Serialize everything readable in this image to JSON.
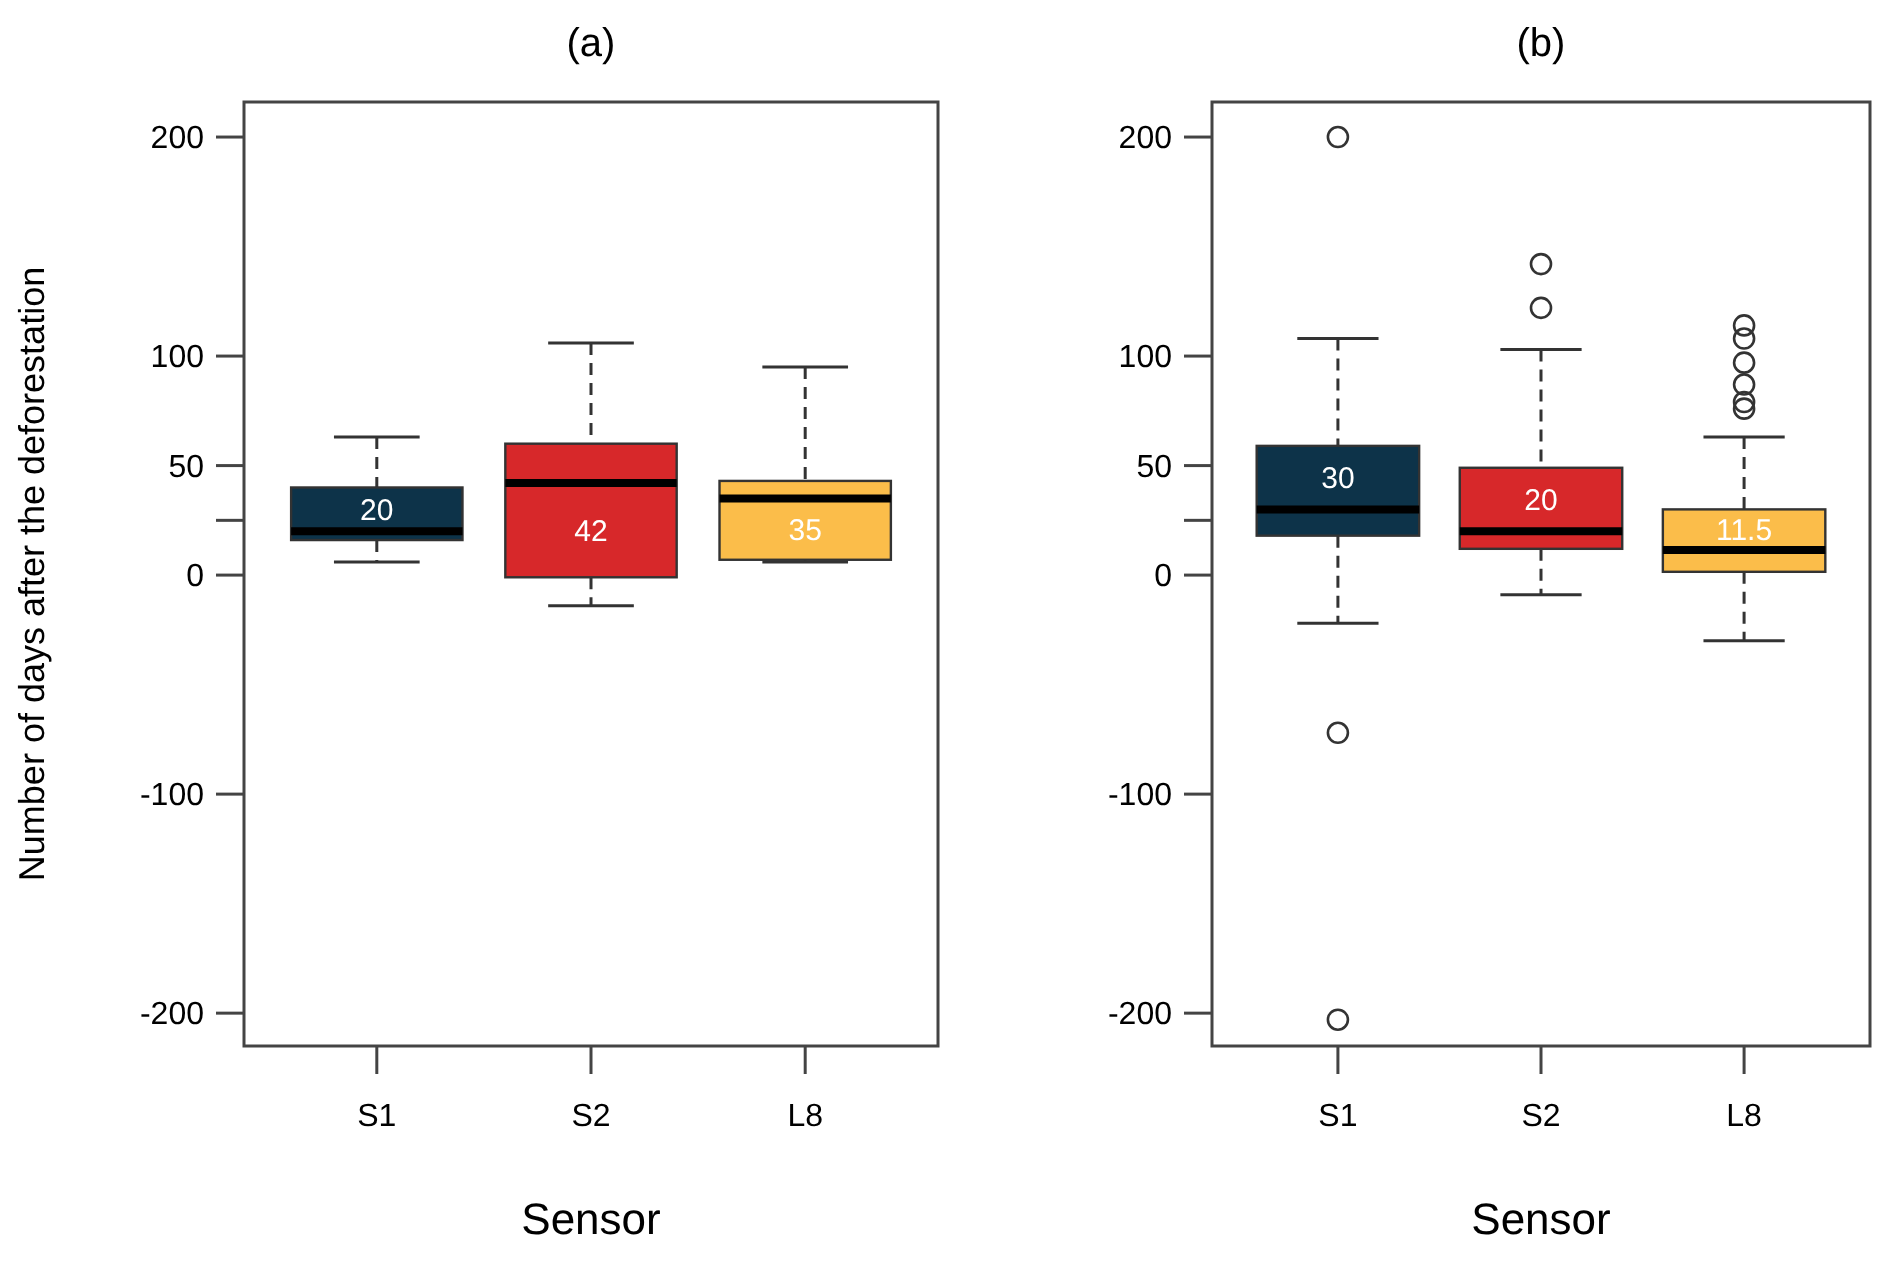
{
  "chart_data": [
    {
      "type": "box",
      "title": "(a)",
      "xlabel": "Sensor",
      "ylabel": "Number of days after the deforestation",
      "categories": [
        "S1",
        "S2",
        "L8"
      ],
      "colors": [
        "#0d3349",
        "#d7282a",
        "#fbbd4a"
      ],
      "ylim": [
        -215,
        216
      ],
      "yticks": [
        200,
        100,
        50,
        {
          "value": 25,
          "label": null
        },
        0,
        -100,
        -200
      ],
      "annotations": [
        {
          "text": "20",
          "x": "S1",
          "y": 20
        },
        {
          "text": "42",
          "x": "S2",
          "y": 42
        },
        {
          "text": "35",
          "x": "L8",
          "y": 35
        }
      ],
      "boxes": [
        {
          "low": 6,
          "q1": 16,
          "median": 20,
          "q3": 40,
          "high": 63
        },
        {
          "low": -14,
          "q1": -1,
          "median": 42,
          "q3": 60,
          "high": 106
        },
        {
          "low": 6,
          "q1": 7,
          "median": 35,
          "q3": 43,
          "high": 95
        }
      ]
    },
    {
      "type": "box",
      "title": "(b)",
      "xlabel": "Sensor",
      "categories": [
        "S1",
        "S2",
        "L8"
      ],
      "colors": [
        "#0d3349",
        "#d7282a",
        "#fbbd4a"
      ],
      "ylim": [
        -215,
        216
      ],
      "yticks": [
        200,
        100,
        50,
        {
          "value": 25,
          "label": null
        },
        0,
        -100,
        -200
      ],
      "annotations": [
        {
          "text": "30",
          "x": "S1",
          "y": 30
        },
        {
          "text": "20",
          "x": "S2",
          "y": 20
        },
        {
          "text": "11.5",
          "x": "L8",
          "y": 11.5
        }
      ],
      "boxes": [
        {
          "low": -22,
          "q1": 18,
          "median": 30,
          "q3": 59,
          "high": 108,
          "outliers": [
            200,
            -72,
            -203
          ]
        },
        {
          "low": -9,
          "q1": 12,
          "median": 20,
          "q3": 49,
          "high": 103,
          "outliers": [
            142,
            122
          ]
        },
        {
          "low": -30,
          "q1": 1.5,
          "median": 11.5,
          "q3": 30,
          "high": 63,
          "outliers": [
            114,
            108,
            97,
            87,
            79,
            76
          ]
        }
      ]
    }
  ]
}
